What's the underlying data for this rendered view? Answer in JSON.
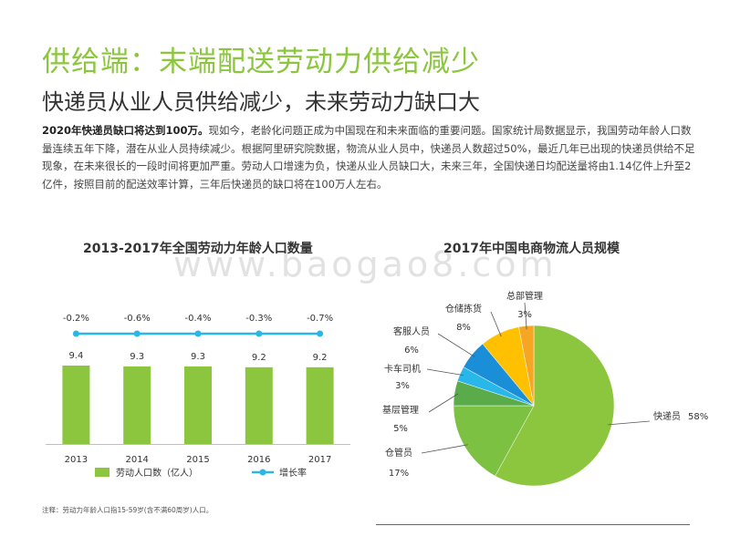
{
  "header": {
    "title": "供给端：末端配送劳动力供给减少",
    "subtitle": "快递员从业人员供给减少，未来劳动力缺口大"
  },
  "body": {
    "lead": "2020年快递员缺口将达到100万。",
    "text": "现如今，老龄化问题正成为中国现在和未来面临的重要问题。国家统计局数据显示，我国劳动年龄人口数量连续五年下降，潜在从业人员持续减少。根据阿里研究院数据，物流从业人员中，快递员人数超过50%，最近几年已出现的快递员供给不足现象，在未来很长的一段时间将更加严重。劳动人口增速为负，快递从业人员缺口大，未来三年，全国快递日均配送量将由1.14亿件上升至2亿件，按照目前的配送效率计算，三年后快递员的缺口将在100万人左右。"
  },
  "watermark": "www.baogao8.com",
  "note": "注释：劳动力年龄人口指15-59岁(含不满60周岁)人口。",
  "colors": {
    "title_green": "#8cc63f",
    "bar_green": "#8cc63f",
    "line_blue": "#29b6e8"
  },
  "chart_data": [
    {
      "type": "bar",
      "title": "2013-2017年全国劳动力年龄人口数量",
      "categories": [
        "2013",
        "2014",
        "2015",
        "2016",
        "2017"
      ],
      "series": [
        {
          "name": "劳动人口数（亿人）",
          "values": [
            9.4,
            9.3,
            9.3,
            9.2,
            9.2
          ],
          "labels": [
            "9.4",
            "9.3",
            "9.3",
            "9.2",
            "9.2"
          ],
          "color": "#8cc63f"
        },
        {
          "name": "增长率",
          "type": "line",
          "values": [
            -0.2,
            -0.6,
            -0.4,
            -0.3,
            -0.7
          ],
          "labels": [
            "-0.2%",
            "-0.6%",
            "-0.4%",
            "-0.3%",
            "-0.7%"
          ],
          "color": "#29b6e8"
        }
      ],
      "legend": "bottom"
    },
    {
      "type": "pie",
      "title": "2017年中国电商物流人员规模",
      "slices": [
        {
          "name": "快递员",
          "value": 58,
          "label": "58%",
          "color": "#8cc63f"
        },
        {
          "name": "仓管员",
          "value": 17,
          "label": "17%",
          "color": "#7cc142"
        },
        {
          "name": "基层管理",
          "value": 5,
          "label": "5%",
          "color": "#5aab4a"
        },
        {
          "name": "卡车司机",
          "value": 3,
          "label": "3%",
          "color": "#29b6e8"
        },
        {
          "name": "客服人员",
          "value": 6,
          "label": "6%",
          "color": "#1a8fd8"
        },
        {
          "name": "仓储拣货",
          "value": 8,
          "label": "8%",
          "color": "#ffc000"
        },
        {
          "name": "总部管理",
          "value": 3,
          "label": "3%",
          "color": "#f5a623"
        }
      ]
    }
  ]
}
